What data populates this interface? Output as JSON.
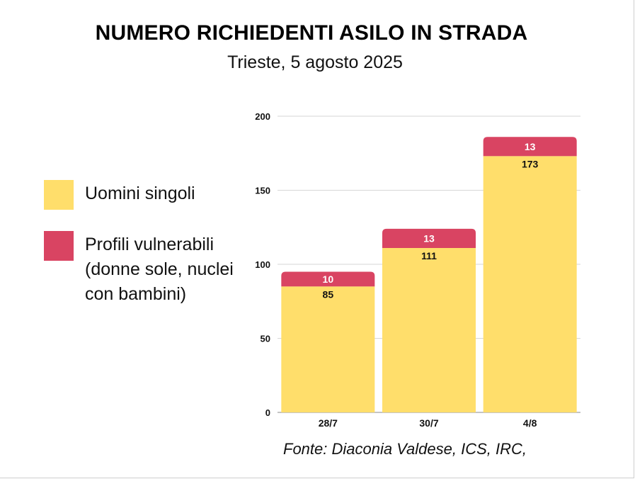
{
  "chart_data": {
    "type": "bar",
    "stacked": true,
    "title": "NUMERO RICHIEDENTI ASILO IN STRADA",
    "subtitle": "Trieste, 5 agosto 2025",
    "categories": [
      "28/7",
      "30/7",
      "4/8"
    ],
    "series": [
      {
        "name": "Uomini singoli",
        "values": [
          85,
          111,
          173
        ],
        "color": "#FFDE6B"
      },
      {
        "name": "Profili vulnerabili (donne sole, nuclei con bambini)",
        "values": [
          10,
          13,
          13
        ],
        "color": "#D94462"
      }
    ],
    "ylim": [
      0,
      200
    ],
    "yticks": [
      "0",
      "50",
      "100",
      "150",
      "200"
    ],
    "grid": true,
    "legend_position": "left",
    "source": "Fonte: Diaconia Valdese, ICS, IRC,"
  },
  "legend": {
    "items": [
      {
        "label": "Uomini singoli",
        "color": "#FFDE6B"
      },
      {
        "label": "Profili vulnerabili (donne sole, nuclei con bambini)",
        "color": "#D94462"
      }
    ]
  }
}
